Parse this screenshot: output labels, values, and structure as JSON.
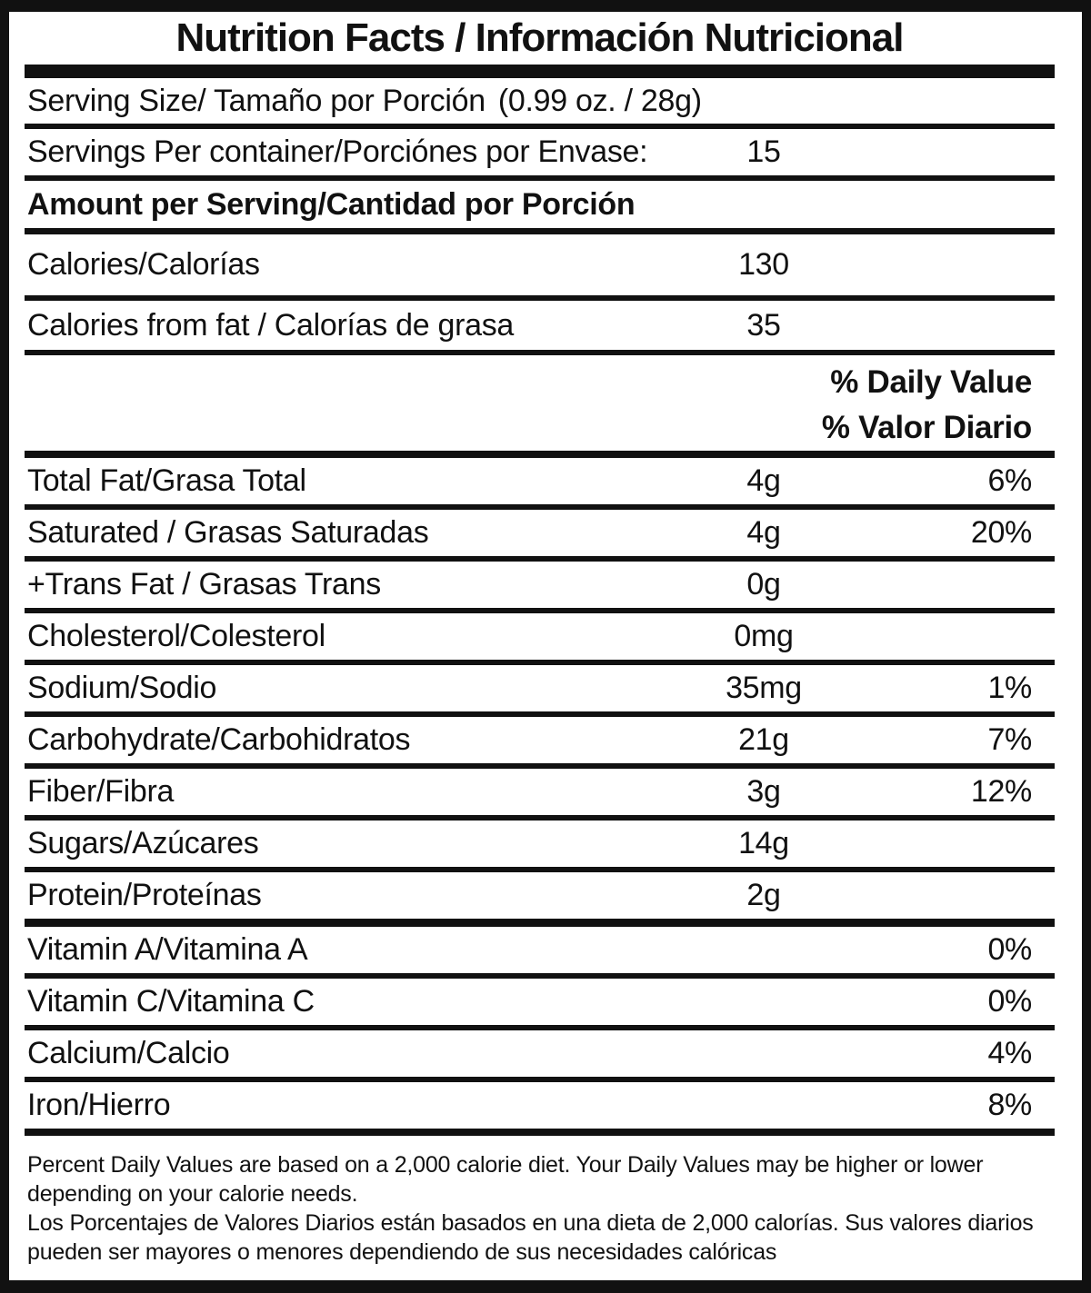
{
  "title": "Nutrition Facts / Información Nutricional",
  "serving": {
    "serving_size_label": "Serving Size/ Tamaño por Porción",
    "serving_size_value": "(0.99 oz. / 28g)",
    "servings_per_container_label": "Servings Per container/Porciónes por Envase:",
    "servings_per_container_value": "15",
    "amount_per_serving_label": "Amount per Serving/Cantidad por Porción"
  },
  "calories": {
    "calories_label": "Calories/Calorías",
    "calories_value": "130",
    "calories_from_fat_label": "Calories from fat / Calorías de grasa",
    "calories_from_fat_value": "35"
  },
  "daily_value_header": {
    "line1": "% Daily Value",
    "line2": "% Valor Diario"
  },
  "nutrients": [
    {
      "label": "Total Fat/Grasa Total",
      "amount": "4g",
      "dv": "6%"
    },
    {
      "label": "Saturated / Grasas Saturadas",
      "amount": "4g",
      "dv": "20%"
    },
    {
      "label": "+Trans Fat / Grasas Trans",
      "amount": "0g",
      "dv": ""
    },
    {
      "label": "Cholesterol/Colesterol",
      "amount": "0mg",
      "dv": ""
    },
    {
      "label": "Sodium/Sodio",
      "amount": "35mg",
      "dv": "1%"
    },
    {
      "label": "Carbohydrate/Carbohidratos",
      "amount": "21g",
      "dv": "7%"
    },
    {
      "label": "Fiber/Fibra",
      "amount": "3g",
      "dv": "12%"
    },
    {
      "label": "Sugars/Azúcares",
      "amount": "14g",
      "dv": ""
    },
    {
      "label": "Protein/Proteínas",
      "amount": "2g",
      "dv": ""
    },
    {
      "label": "Vitamin A/Vitamina A",
      "amount": "",
      "dv": "0%"
    },
    {
      "label": "Vitamin C/Vitamina C",
      "amount": "",
      "dv": "0%"
    },
    {
      "label": "Calcium/Calcio",
      "amount": "",
      "dv": "4%"
    },
    {
      "label": "Iron/Hierro",
      "amount": "",
      "dv": "8%"
    }
  ],
  "footnote": {
    "english": "Percent Daily Values are based on a 2,000 calorie diet. Your Daily Values may be higher or lower depending on your calorie needs.",
    "spanish": "Los Porcentajes de Valores Diarios están basados en una dieta de 2,000 calorías. Sus valores diarios pueden ser mayores o menores dependiendo de sus necesidades calóricas"
  },
  "colors": {
    "text": "#111111",
    "bg": "#ffffff",
    "border": "#111111"
  }
}
